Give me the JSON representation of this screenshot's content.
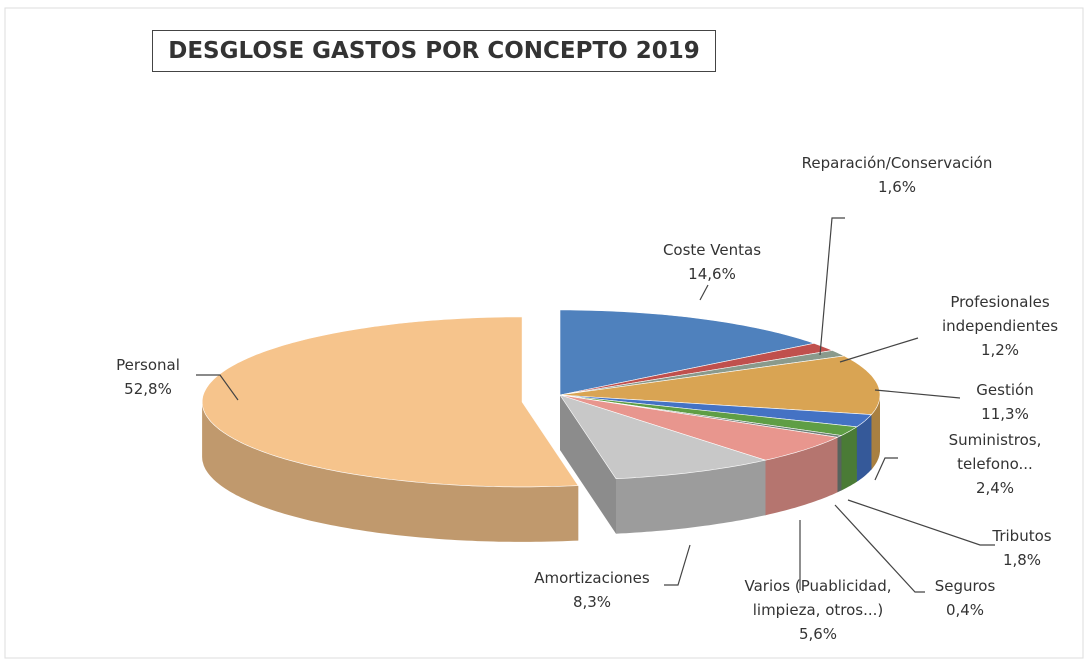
{
  "chart_data": {
    "type": "pie3d",
    "title": "DESGLOSE GASTOS POR CONCEPTO 2019",
    "categories": [
      "Coste Ventas",
      "Reparación/Conservación",
      "Profesionales independientes",
      "Gestión",
      "Suministros, telefono...",
      "Tributos",
      "Seguros",
      "Varios (Puablicidad, limpieza, otros...)",
      "Amortizaciones",
      "Personal"
    ],
    "values": [
      14.6,
      1.6,
      1.2,
      11.3,
      2.4,
      1.8,
      0.4,
      5.6,
      8.3,
      52.8
    ],
    "value_labels": [
      "14,6%",
      "1,6%",
      "1,2%",
      "11,3%",
      "2,4%",
      "1,8%",
      "0,4%",
      "5,6%",
      "8,3%",
      "52,8%"
    ],
    "colors": [
      "#4f81bd",
      "#c0504d",
      "#8a9a8c",
      "#d9a453",
      "#4472c4",
      "#5f9e45",
      "#6f7f78",
      "#e8968e",
      "#c8c8c8",
      "#f6c48c"
    ],
    "exploded": "Personal"
  }
}
